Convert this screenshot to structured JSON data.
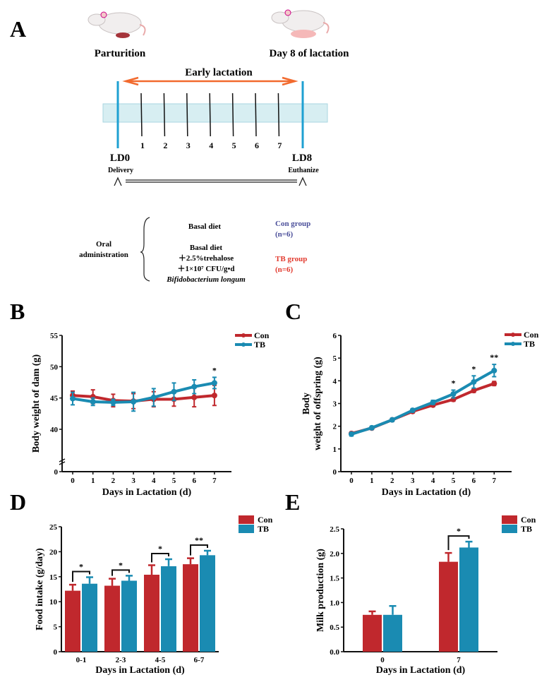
{
  "panel_a": {
    "label": "A",
    "left_caption": "Parturition",
    "right_caption": "Day 8 of lactation",
    "period_label": "Early lactation",
    "day_ticks": [
      "1",
      "2",
      "3",
      "4",
      "5",
      "6",
      "7"
    ],
    "start_label": "LD0",
    "start_sub": "Delivery",
    "end_label": "LD8",
    "end_sub": "Euthanize",
    "oral_line1": "Oral",
    "oral_line2": "administration",
    "con_diet": "Basal diet",
    "tb_diet_1": "Basal diet",
    "tb_diet_2": "＋2.5%trehalose",
    "tb_diet_3": "＋1×10⁷ CFU/g•d",
    "tb_diet_4": "Bifidobacterium longum",
    "con_group": "Con group",
    "con_n": "(n=6)",
    "tb_group": "TB group",
    "tb_n": "(n=6)",
    "colors": {
      "con_group": "#4b4f9a",
      "tb_group": "#e23a2e",
      "arrow": "#f26a2e",
      "day_line": "#1ea0d2",
      "band": "#d7eef2"
    }
  },
  "colors": {
    "con": "#c0282d",
    "tb": "#1a8bb2"
  },
  "chart_data": [
    {
      "panel": "B",
      "type": "line",
      "xlabel": "Days in Lactation (d)",
      "ylabel": "Body weight of dam (g)",
      "x": [
        0,
        1,
        2,
        3,
        4,
        5,
        6,
        7
      ],
      "yticks": [
        0,
        40,
        45,
        50,
        55
      ],
      "ylim": [
        0,
        55
      ],
      "y_axis_break": [
        0,
        40
      ],
      "legend": "top-right",
      "series": [
        {
          "name": "Con",
          "values": [
            45.4,
            45.2,
            44.6,
            44.5,
            44.8,
            44.8,
            45.1,
            45.4
          ],
          "error": [
            0.7,
            1.1,
            1.0,
            1.2,
            1.2,
            1.1,
            1.5,
            1.6
          ]
        },
        {
          "name": "TB",
          "values": [
            44.9,
            44.4,
            44.3,
            44.4,
            45.1,
            46.0,
            46.8,
            47.4
          ],
          "error": [
            1.0,
            0.6,
            0.5,
            1.5,
            1.4,
            1.4,
            1.1,
            0.9
          ]
        }
      ],
      "significance": [
        {
          "x": 7,
          "label": "*"
        }
      ]
    },
    {
      "panel": "C",
      "type": "line",
      "xlabel": "Days in Lactation (d)",
      "ylabel_line1": "Body",
      "ylabel_line2": "weight of offspring (g)",
      "x": [
        0,
        1,
        2,
        3,
        4,
        5,
        6,
        7
      ],
      "yticks": [
        0,
        1,
        2,
        3,
        4,
        5,
        6
      ],
      "ylim": [
        0,
        6
      ],
      "legend": "top-right",
      "series": [
        {
          "name": "Con",
          "values": [
            1.68,
            1.92,
            2.28,
            2.65,
            2.93,
            3.18,
            3.57,
            3.88
          ],
          "error": [
            0.07,
            0.06,
            0.06,
            0.06,
            0.07,
            0.08,
            0.08,
            0.09
          ]
        },
        {
          "name": "TB",
          "values": [
            1.65,
            1.93,
            2.28,
            2.7,
            3.05,
            3.42,
            3.95,
            4.45
          ],
          "error": [
            0.08,
            0.07,
            0.07,
            0.07,
            0.09,
            0.17,
            0.27,
            0.27
          ]
        }
      ],
      "significance": [
        {
          "x": 5,
          "label": "*"
        },
        {
          "x": 6,
          "label": "*"
        },
        {
          "x": 7,
          "label": "**"
        }
      ]
    },
    {
      "panel": "D",
      "type": "bar",
      "xlabel": "Days in Lactation (d)",
      "ylabel": "Food intake (g/day)",
      "categories": [
        "0-1",
        "2-3",
        "4-5",
        "6-7"
      ],
      "yticks": [
        0,
        5,
        10,
        15,
        20,
        25
      ],
      "ylim": [
        0,
        25
      ],
      "legend": "top-right",
      "series": [
        {
          "name": "Con",
          "values": [
            12.2,
            13.2,
            15.4,
            17.5
          ],
          "error": [
            1.2,
            1.4,
            1.9,
            1.2
          ]
        },
        {
          "name": "TB",
          "values": [
            13.6,
            14.2,
            17.1,
            19.3
          ],
          "error": [
            1.3,
            1.0,
            1.4,
            0.9
          ]
        }
      ],
      "significance": [
        "*",
        "*",
        "*",
        "**"
      ]
    },
    {
      "panel": "E",
      "type": "bar",
      "xlabel": "Days in Lactation (d)",
      "ylabel": "Milk production (g)",
      "categories": [
        "0",
        "7"
      ],
      "yticks": [
        "0.0",
        "0.5",
        "1.0",
        "1.5",
        "2.0",
        "2.5"
      ],
      "ylim": [
        0,
        2.5
      ],
      "legend": "top-right",
      "series": [
        {
          "name": "Con",
          "values": [
            0.75,
            1.83
          ],
          "error": [
            0.07,
            0.18
          ]
        },
        {
          "name": "TB",
          "values": [
            0.75,
            2.12
          ],
          "error": [
            0.18,
            0.12
          ]
        }
      ],
      "significance": [
        "",
        "*"
      ]
    }
  ]
}
